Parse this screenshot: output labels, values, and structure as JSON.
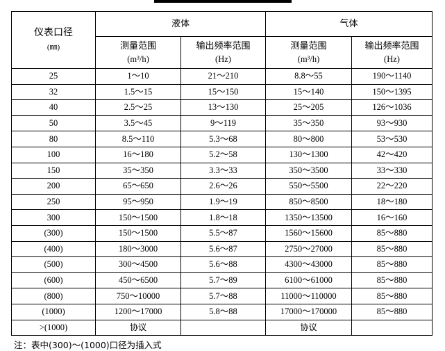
{
  "header": {
    "diameter_label": "仪表口径",
    "diameter_unit": "(㎜)",
    "liquid": "液体",
    "gas": "气体",
    "measure_range": "测量范围",
    "measure_unit": "(m³/h)",
    "freq_range": "输出频率范围",
    "freq_unit": "(Hz)"
  },
  "rows": [
    [
      "25",
      "1～10",
      "21～210",
      "8.8～55",
      "190～1140"
    ],
    [
      "32",
      "1.5～15",
      "15～150",
      "15～140",
      "150～1395"
    ],
    [
      "40",
      "2.5～25",
      "13～130",
      "25～205",
      "126～1036"
    ],
    [
      "50",
      "3.5～45",
      "9～119",
      "35～350",
      "93～930"
    ],
    [
      "80",
      "8.5～110",
      "5.3～68",
      "80～800",
      "53～530"
    ],
    [
      "100",
      "16～180",
      "5.2～58",
      "130～1300",
      "42～420"
    ],
    [
      "150",
      "35～350",
      "3.3～33",
      "350～3500",
      "33～330"
    ],
    [
      "200",
      "65～650",
      "2.6～26",
      "550～5500",
      "22～220"
    ],
    [
      "250",
      "95～950",
      "1.9～19",
      "850～8500",
      "18～180"
    ],
    [
      "300",
      "150～1500",
      "1.8～18",
      "1350～13500",
      "16～160"
    ],
    [
      "(300)",
      "150～1500",
      "5.5～87",
      "1560～15600",
      "85～880"
    ],
    [
      "(400)",
      "180～3000",
      "5.6～87",
      "2750～27000",
      "85～880"
    ],
    [
      "(500)",
      "300～4500",
      "5.6～88",
      "4300～43000",
      "85～880"
    ],
    [
      "(600)",
      "450～6500",
      "5.7～89",
      "6100～61000",
      "85～880"
    ],
    [
      "(800)",
      "750～10000",
      "5.7～88",
      "11000～110000",
      "85～880"
    ],
    [
      "(1000)",
      "1200～17000",
      "5.8～88",
      "17000～170000",
      "85～880"
    ],
    [
      ">(1000)",
      "协议",
      "",
      "协议",
      ""
    ]
  ],
  "note": "注：表中(300)～(1000)口径为插入式"
}
